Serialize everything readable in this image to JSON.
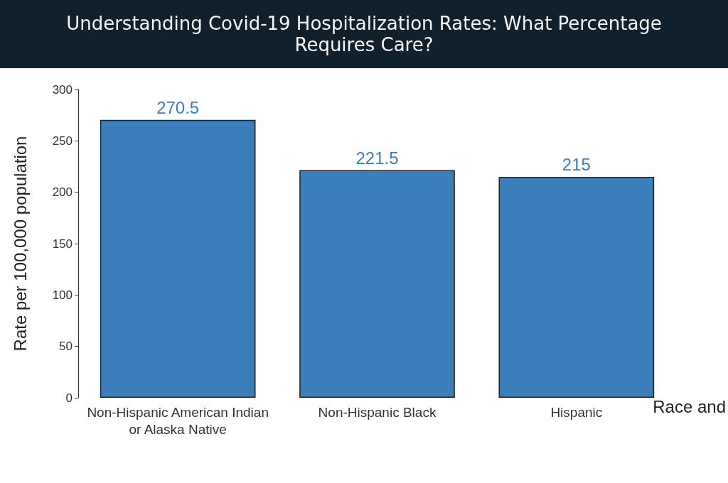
{
  "chart_data": {
    "type": "bar",
    "title": "Understanding Covid-19 Hospitalization Rates: What Percentage Requires Care?",
    "xlabel": "Race and",
    "ylabel": "Rate per 100,000 population",
    "categories": [
      "Non-Hispanic American Indian\nor Alaska Native",
      "Non-Hispanic Black",
      "Hispanic"
    ],
    "values": [
      270.5,
      221.5,
      215
    ],
    "color": "#3a7ebb",
    "data_labels": true,
    "ylim": [
      0,
      300
    ],
    "yticks": [
      0,
      50,
      100,
      150,
      200,
      250,
      300
    ],
    "grid": false
  }
}
